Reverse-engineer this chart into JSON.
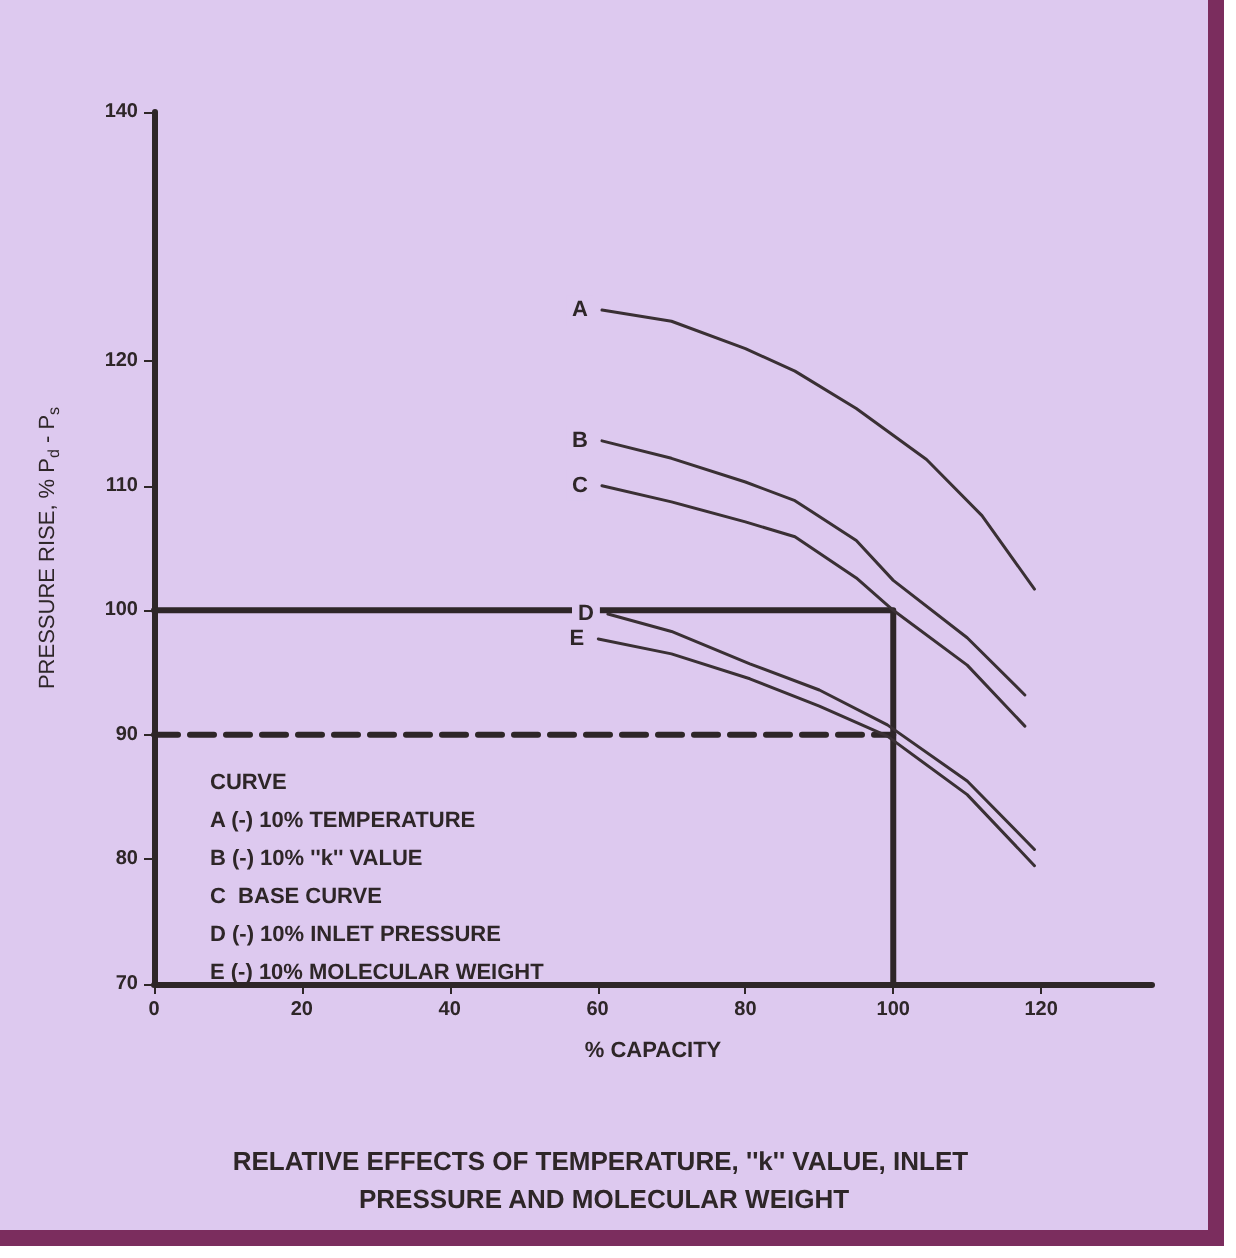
{
  "chart_data": {
    "type": "line",
    "title": "RELATIVE EFFECTS OF TEMPERATURE, ''k'' VALUE, INLET PRESSURE AND MOLECULAR WEIGHT",
    "xlabel": "% CAPACITY",
    "ylabel": "PRESSURE RISE, % P$_{d}$ - P$_{s}$",
    "xlim": [
      0,
      135
    ],
    "xticks": [
      0,
      20,
      40,
      60,
      80,
      100,
      120
    ],
    "ylim": [
      70,
      140
    ],
    "yticks": [
      70,
      80,
      90,
      100,
      110,
      120,
      140
    ],
    "grid": false,
    "legend": false,
    "marker": "none",
    "line_style": "solid",
    "series": [
      {
        "name": "A",
        "color": "#3a3034",
        "x": [
          60.6,
          70,
          80,
          86.7,
          95,
          104.5,
          112,
          119.1
        ],
        "values": [
          124.1,
          123.2,
          121.0,
          119.2,
          116.2,
          112.1,
          107.6,
          101.7
        ]
      },
      {
        "name": "B",
        "color": "#3a3034",
        "x": [
          60.6,
          70,
          80,
          86.7,
          95,
          100,
          110,
          117.8
        ],
        "values": [
          113.6,
          112.2,
          110.3,
          108.8,
          105.6,
          102.4,
          97.8,
          93.2
        ]
      },
      {
        "name": "C",
        "color": "#3a3034",
        "x": [
          60.6,
          70,
          80,
          86.7,
          95,
          100,
          110,
          117.8
        ],
        "values": [
          110.0,
          108.7,
          107.1,
          105.9,
          102.6,
          100.0,
          95.6,
          90.7
        ]
      },
      {
        "name": "D",
        "color": "#3a3034",
        "x": [
          61.4,
          70,
          80.6,
          90,
          99.2,
          110,
          119.1
        ],
        "values": [
          99.7,
          98.3,
          95.7,
          93.6,
          90.8,
          86.3,
          80.8
        ]
      },
      {
        "name": "E",
        "color": "#3a3034",
        "x": [
          60.1,
          70,
          80.6,
          90,
          99.2,
          110,
          119.1
        ],
        "values": [
          97.7,
          96.5,
          94.5,
          92.3,
          89.9,
          85.2,
          79.5
        ]
      },
      {
        "color": "#2e2628",
        "x": [
          0,
          100,
          100
        ],
        "values": [
          100,
          100,
          70
        ]
      },
      {
        "color": "#2e2628",
        "x": [
          0,
          100
        ],
        "values": [
          90,
          90
        ],
        "line_style": "dashed"
      }
    ],
    "annotations": [
      "CURVE",
      "A (-) 10% TEMPERATURE",
      "B (-) 10% ''k'' VALUE",
      "C  BASE CURVE",
      "D (-) 10% INLET PRESSURE",
      "E (-) 10% MOLECULAR WEIGHT"
    ]
  }
}
